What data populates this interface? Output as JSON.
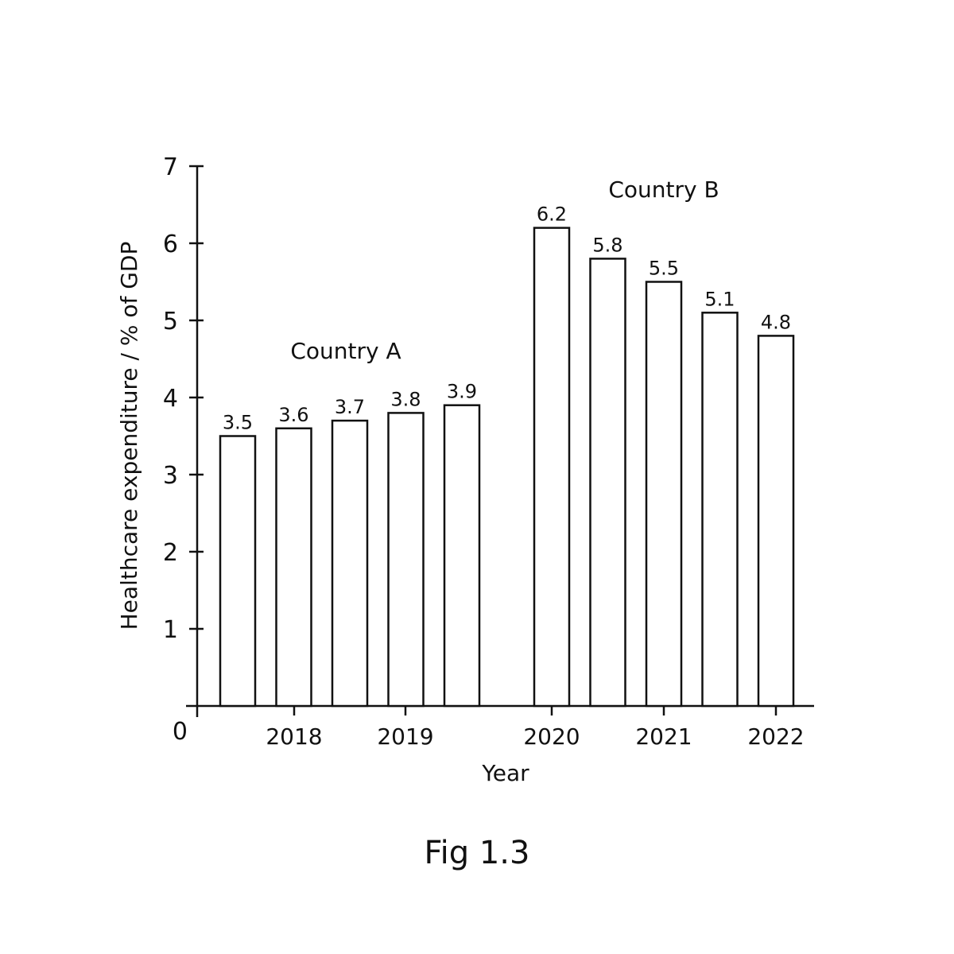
{
  "chart_data": {
    "type": "bar",
    "caption": "Fig 1.3",
    "xlabel": "Year",
    "ylabel": "Healthcare expenditure / % of GDP",
    "ylim": [
      0,
      7
    ],
    "yticks": [
      "0",
      "1",
      "2",
      "3",
      "4",
      "5",
      "6",
      "7"
    ],
    "xticks": [
      "2018",
      "2019",
      "2020",
      "2021",
      "2022"
    ],
    "grid": false,
    "groups": [
      {
        "name": "Country A",
        "values": [
          3.5,
          3.6,
          3.7,
          3.8,
          3.9
        ],
        "labels": [
          "3.5",
          "3.6",
          "3.7",
          "3.8",
          "3.9"
        ]
      },
      {
        "name": "Country B",
        "values": [
          6.2,
          5.8,
          5.5,
          5.1,
          4.8
        ],
        "labels": [
          "6.2",
          "5.8",
          "5.5",
          "5.1",
          "4.8"
        ]
      }
    ]
  }
}
